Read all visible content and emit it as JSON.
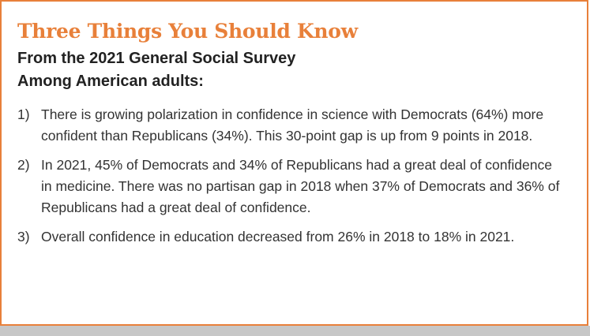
{
  "box": {
    "title": "Three Things You Should Know",
    "subtitle_line1": "From the 2021 General Social Survey",
    "subtitle_line2": "Among American adults:",
    "items": [
      {
        "number": "1)",
        "text": "There is growing polarization in confidence in science with Democrats (64%) more confident than Republicans (34%). This 30-point gap is up from 9 points in 2018."
      },
      {
        "number": "2)",
        "text": "In 2021, 45% of Democrats and 34% of Republicans had a great deal of confidence in medicine. There was no partisan gap in 2018 when 37% of Democrats and 36% of Republicans had a great deal of confidence."
      },
      {
        "number": "3)",
        "text": "Overall confidence in education decreased from 26% in 2018 to 18% in 2021."
      }
    ]
  },
  "colors": {
    "accent": "#e8803a",
    "text": "#333333",
    "shadow": "#c7c7c7"
  }
}
